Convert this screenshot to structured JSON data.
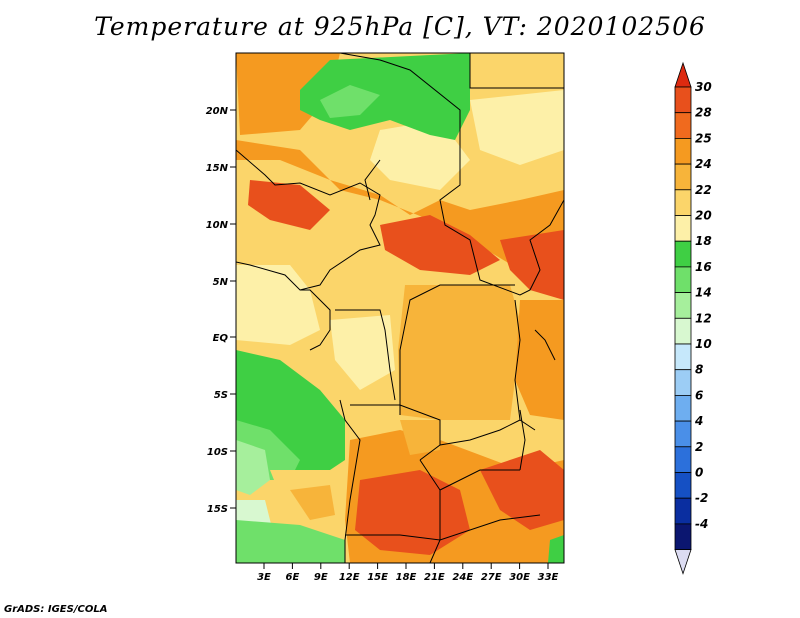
{
  "title": "Temperature at 925hPa [C], VT: 2020102506",
  "credit": "GrADS: IGES/COLA",
  "map": {
    "lat_labels": [
      "20N",
      "15N",
      "10N",
      "5N",
      "EQ",
      "5S",
      "10S",
      "15S"
    ],
    "lon_labels": [
      "3E",
      "6E",
      "9E",
      "12E",
      "15E",
      "18E",
      "21E",
      "24E",
      "27E",
      "30E",
      "33E"
    ]
  },
  "colorbar": {
    "labels": [
      "30",
      "28",
      "25",
      "24",
      "22",
      "20",
      "18",
      "16",
      "14",
      "12",
      "10",
      "8",
      "6",
      "4",
      "2",
      "0",
      "-2",
      "-4"
    ],
    "colors": [
      "#e8501c",
      "#f06a1e",
      "#f59a20",
      "#f7b43a",
      "#fbd56a",
      "#fdf0a8",
      "#3fcf44",
      "#6fe06a",
      "#a6ef9c",
      "#d8f8d0",
      "#c6e8fb",
      "#9ccdf5",
      "#6eaef0",
      "#4a8fe8",
      "#2c70db",
      "#1550c4",
      "#0a2ea0",
      "#0b1670"
    ],
    "top_color": "#dd2a10",
    "bottom_color": "#dcdcf2"
  }
}
